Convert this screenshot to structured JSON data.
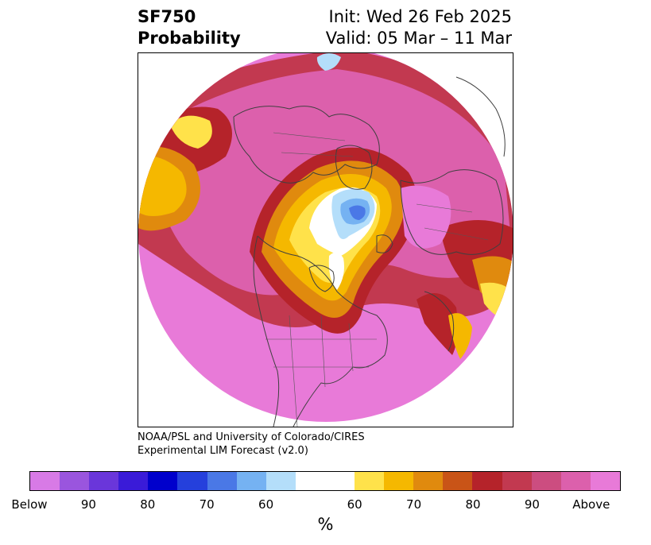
{
  "title": {
    "left_line1": "SF750",
    "left_line2": "Probability",
    "right_line1": "Init: Wed 26 Feb 2025",
    "right_line2": "Valid: 05 Mar – 11 Mar"
  },
  "credit": {
    "line1": "NOAA/PSL and University of Colorado/CIRES",
    "line2": "Experimental LIM Forecast (v2.0)"
  },
  "colorbar": {
    "unit": "%",
    "colors": [
      "#d87ae6",
      "#9a55de",
      "#6a36da",
      "#3a1bd8",
      "#0000cc",
      "#2540dc",
      "#4a78e6",
      "#75b2f2",
      "#b4defa",
      "#ffffff",
      "#ffe24a",
      "#f5b800",
      "#e08a0e",
      "#c95417",
      "#b5232a",
      "#c23950",
      "#cc4d80",
      "#dc60ac",
      "#e87ad8"
    ],
    "tick_labels": [
      "Below",
      "90",
      "80",
      "70",
      "60",
      "60",
      "70",
      "80",
      "90",
      "Above"
    ]
  }
}
